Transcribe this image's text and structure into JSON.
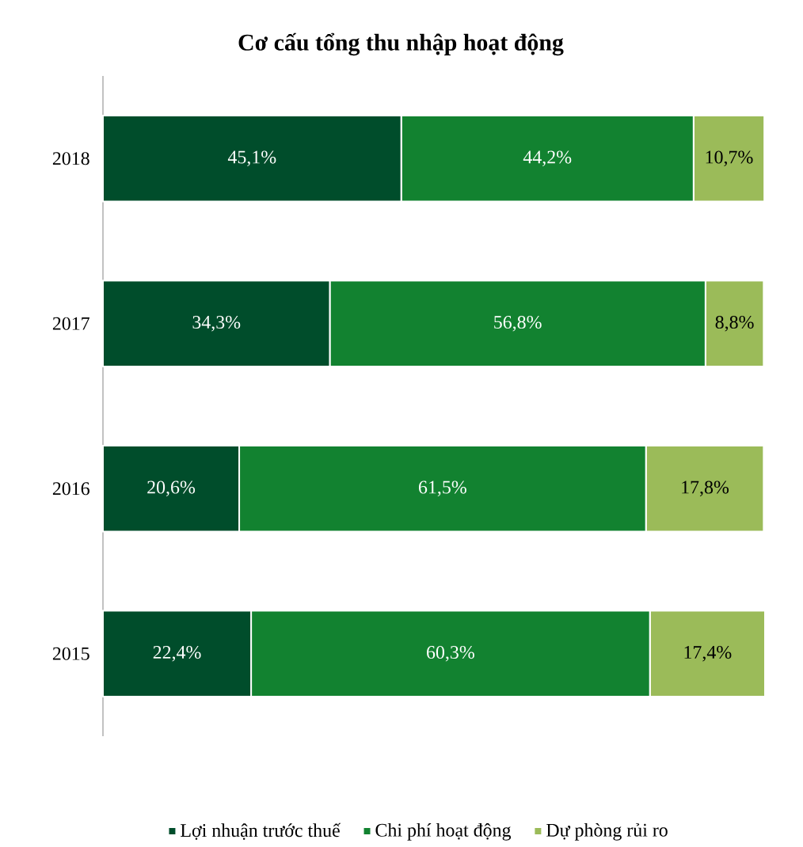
{
  "chart_data": {
    "type": "bar",
    "title": "Cơ cấu tổng thu nhập hoạt động",
    "orientation": "horizontal",
    "stacked": true,
    "legend": "bottom",
    "categories": [
      "2018",
      "2017",
      "2016",
      "2015"
    ],
    "series": [
      {
        "name": "Lợi nhuận trước thuế",
        "color": "#004d2b",
        "values": [
          45.1,
          34.3,
          20.6,
          22.4
        ],
        "value_labels": [
          "45,1%",
          "34,3%",
          "20,6%",
          "22,4%"
        ]
      },
      {
        "name": "Chi phí hoạt động",
        "color": "#128230",
        "values": [
          44.2,
          56.8,
          61.5,
          60.3
        ],
        "value_labels": [
          "44,2%",
          "56,8%",
          "61,5%",
          "60,3%"
        ]
      },
      {
        "name": "Dự phòng rủi ro",
        "color": "#9bbb59",
        "values": [
          10.7,
          8.8,
          17.8,
          17.4
        ],
        "value_labels": [
          "10,7%",
          "8,8%",
          "17,8%",
          "17,4%"
        ]
      }
    ]
  }
}
